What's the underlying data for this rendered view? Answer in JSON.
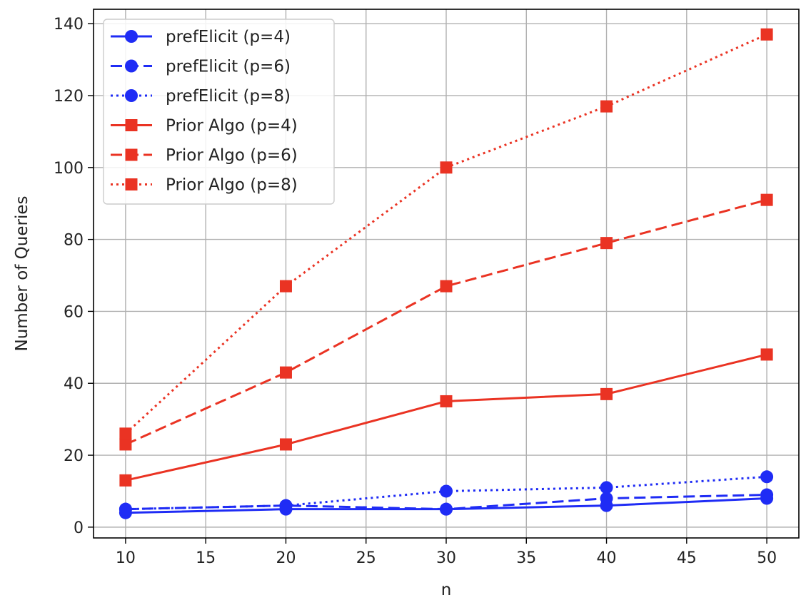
{
  "chart_data": {
    "type": "line",
    "title": "",
    "xlabel": "n",
    "ylabel": "Number of Queries",
    "xlim": [
      8,
      52
    ],
    "ylim": [
      -3,
      144
    ],
    "xticks": [
      10,
      15,
      20,
      25,
      30,
      35,
      40,
      45,
      50
    ],
    "yticks": [
      0,
      20,
      40,
      60,
      80,
      100,
      120,
      140
    ],
    "grid": true,
    "legend_position": "upper-left",
    "x": [
      10,
      20,
      30,
      40,
      50
    ],
    "series": [
      {
        "name": "prefElicit (p=4)",
        "values": [
          4,
          5,
          5,
          6,
          8
        ],
        "color": "#1f2cf5",
        "dash": "solid",
        "marker": "circle"
      },
      {
        "name": "prefElicit (p=6)",
        "values": [
          5,
          6,
          5,
          8,
          9
        ],
        "color": "#1f2cf5",
        "dash": "dashed",
        "marker": "circle"
      },
      {
        "name": "prefElicit (p=8)",
        "values": [
          5,
          6,
          10,
          11,
          14
        ],
        "color": "#1f2cf5",
        "dash": "dotted",
        "marker": "circle"
      },
      {
        "name": "Prior Algo (p=4)",
        "values": [
          13,
          23,
          35,
          37,
          48
        ],
        "color": "#ea3323",
        "dash": "solid",
        "marker": "square"
      },
      {
        "name": "Prior Algo (p=6)",
        "values": [
          23,
          43,
          67,
          79,
          91
        ],
        "color": "#ea3323",
        "dash": "dashed",
        "marker": "square"
      },
      {
        "name": "Prior Algo (p=8)",
        "values": [
          26,
          67,
          100,
          117,
          137
        ],
        "color": "#ea3323",
        "dash": "dotted",
        "marker": "square"
      }
    ]
  }
}
